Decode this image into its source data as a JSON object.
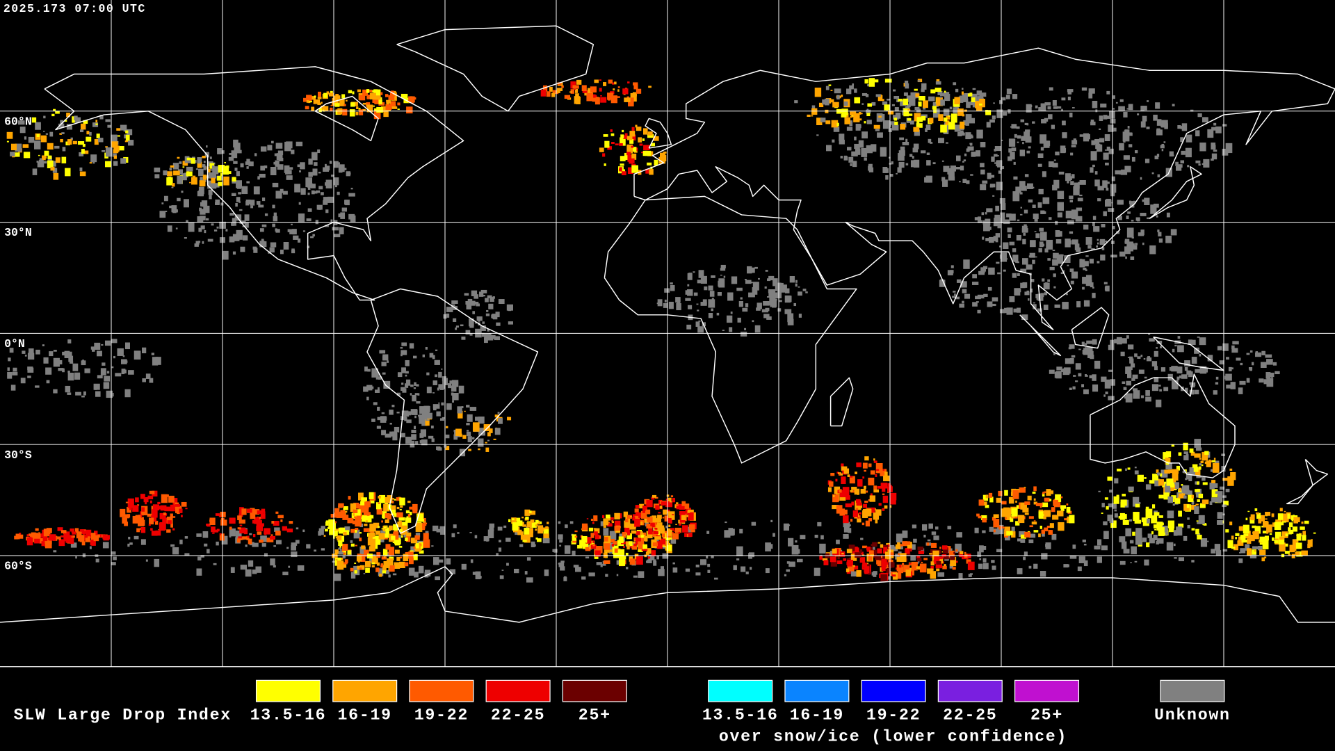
{
  "header": {
    "timestamp": "2025.173 07:00 UTC"
  },
  "map": {
    "latitude_labels": [
      "60°N",
      "30°N",
      "0°N",
      "30°S",
      "60°S"
    ]
  },
  "legend": {
    "title": "SLW Large Drop Index",
    "items": [
      {
        "label": "13.5-16",
        "color": "#ffff00"
      },
      {
        "label": "16-19",
        "color": "#ffa500"
      },
      {
        "label": "19-22",
        "color": "#ff5a00"
      },
      {
        "label": "22-25",
        "color": "#ee0000"
      },
      {
        "label": "25+",
        "color": "#6b0000"
      }
    ],
    "snow_ice_items": [
      {
        "label": "13.5-16",
        "color": "#00ffff"
      },
      {
        "label": "16-19",
        "color": "#0a84ff"
      },
      {
        "label": "19-22",
        "color": "#0000ff"
      },
      {
        "label": "22-25",
        "color": "#7a1fe0"
      },
      {
        "label": "25+",
        "color": "#c010d0"
      }
    ],
    "snow_ice_caption": "over snow/ice (lower confidence)",
    "unknown": {
      "label": "Unknown",
      "color": "#808080"
    }
  }
}
